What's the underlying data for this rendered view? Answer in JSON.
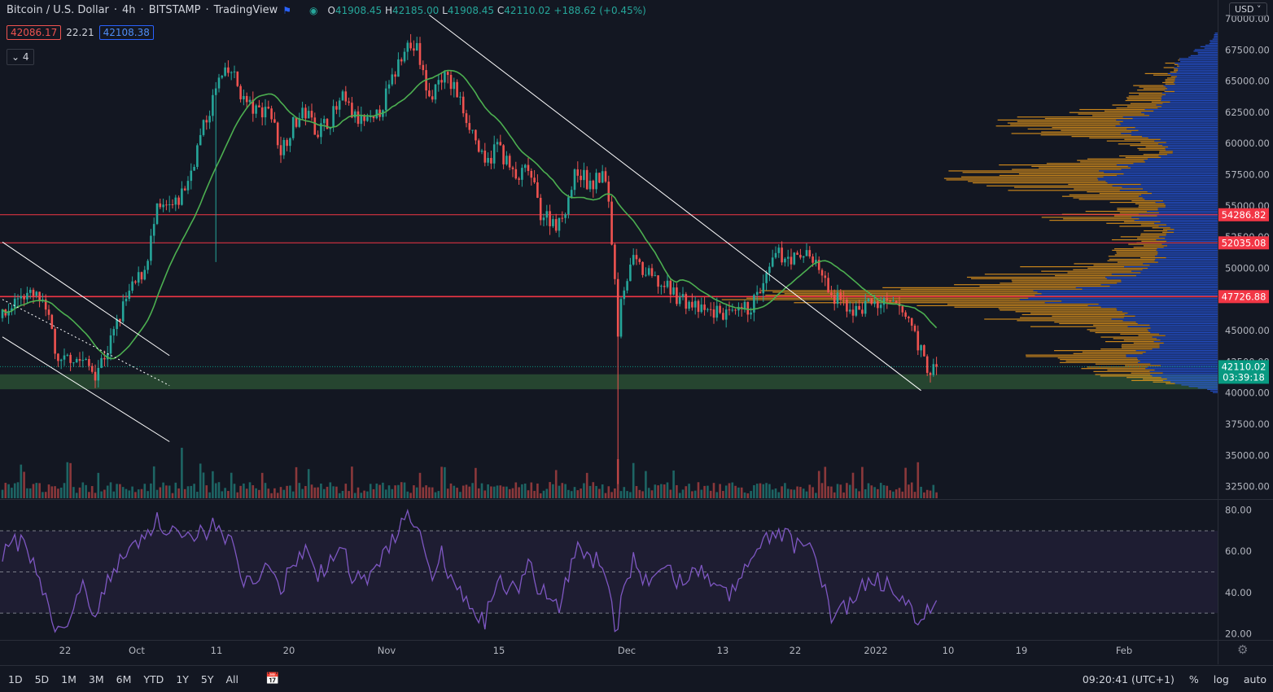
{
  "header": {
    "symbol": "Bitcoin / U.S. Dollar",
    "interval": "4h",
    "exchange": "BITSTAMP",
    "source": "TradingView",
    "ohlc": {
      "open_label": "O",
      "open": "41908.45",
      "high_label": "H",
      "high": "42185.00",
      "low_label": "L",
      "low": "41908.45",
      "close_label": "C",
      "close": "42110.02",
      "change": "+188.62 (+0.45%)"
    },
    "sell_price": "42086.17",
    "spread": "22.21",
    "buy_price": "42108.38",
    "indicator_count": "4",
    "currency": "USD"
  },
  "colors": {
    "background": "#131722",
    "up": "#26a69a",
    "down": "#ef5350",
    "ma": "#4caf50",
    "rsi": "#7e57c2",
    "hline": "#f23645",
    "support_zone": "#2a4d32",
    "trendline": "#ffffff",
    "vp_orange": "#f7a21b",
    "vp_blue": "#2962ff"
  },
  "price_axis": {
    "ticks": [
      "70000.00",
      "67500.00",
      "65000.00",
      "62500.00",
      "60000.00",
      "57500.00",
      "55000.00",
      "52500.00",
      "50000.00",
      "47500.00",
      "45000.00",
      "42500.00",
      "40000.00",
      "37500.00",
      "35000.00",
      "32500.00"
    ],
    "labels": [
      {
        "text": "54286.82",
        "color": "#f23645"
      },
      {
        "text": "52035.08",
        "color": "#f23645"
      },
      {
        "text": "47726.88",
        "color": "#f23645"
      },
      {
        "text": "42110.02",
        "color": "#089981"
      },
      {
        "text": "03:39:18",
        "color": "#089981"
      }
    ]
  },
  "rsi_axis": {
    "ticks": [
      "80.00",
      "60.00",
      "40.00",
      "20.00"
    ]
  },
  "time_axis": {
    "ticks": [
      "22",
      "Oct",
      "11",
      "20",
      "Nov",
      "15",
      "Dec",
      "13",
      "22",
      "2022",
      "10",
      "19",
      "Feb"
    ]
  },
  "bottom": {
    "ranges": [
      "1D",
      "5D",
      "1M",
      "3M",
      "6M",
      "YTD",
      "1Y",
      "5Y",
      "All"
    ],
    "clock": "09:20:41 (UTC+1)",
    "percent": "%",
    "log": "log",
    "auto": "auto"
  },
  "chart_data": {
    "type": "candlestick",
    "price_ylim": [
      31500,
      71500
    ],
    "rsi_ylim": [
      17,
      85
    ],
    "rsi_levels": [
      70,
      50,
      30
    ],
    "horizontal_levels": [
      54286.82,
      52035.08,
      47726.88
    ],
    "support_zone": [
      40300,
      41500
    ],
    "last_price": 42110.02,
    "anchors": [
      [
        0,
        46000
      ],
      [
        6,
        48000
      ],
      [
        12,
        47500
      ],
      [
        16,
        45000
      ],
      [
        18,
        42000
      ],
      [
        22,
        43000
      ],
      [
        26,
        42500
      ],
      [
        30,
        41700
      ],
      [
        34,
        43500
      ],
      [
        40,
        47500
      ],
      [
        46,
        50000
      ],
      [
        50,
        54500
      ],
      [
        56,
        55000
      ],
      [
        60,
        57000
      ],
      [
        64,
        60500
      ],
      [
        70,
        65000
      ],
      [
        74,
        65800
      ],
      [
        78,
        63500
      ],
      [
        82,
        62500
      ],
      [
        86,
        63000
      ],
      [
        90,
        59500
      ],
      [
        94,
        61500
      ],
      [
        98,
        62500
      ],
      [
        102,
        61000
      ],
      [
        106,
        62000
      ],
      [
        110,
        63500
      ],
      [
        114,
        62000
      ],
      [
        120,
        61500
      ],
      [
        126,
        65000
      ],
      [
        130,
        68000
      ],
      [
        134,
        67500
      ],
      [
        138,
        63500
      ],
      [
        142,
        65500
      ],
      [
        146,
        64500
      ],
      [
        152,
        61000
      ],
      [
        156,
        58000
      ],
      [
        160,
        60000
      ],
      [
        166,
        57000
      ],
      [
        170,
        58000
      ],
      [
        174,
        54500
      ],
      [
        180,
        53500
      ],
      [
        186,
        58000
      ],
      [
        190,
        56500
      ],
      [
        194,
        57500
      ],
      [
        196,
        55500
      ],
      [
        198,
        49000
      ],
      [
        199,
        45000
      ],
      [
        200,
        48000
      ],
      [
        204,
        50500
      ],
      [
        208,
        49500
      ],
      [
        214,
        48500
      ],
      [
        220,
        47500
      ],
      [
        226,
        46500
      ],
      [
        232,
        46500
      ],
      [
        236,
        46000
      ],
      [
        242,
        47000
      ],
      [
        246,
        48500
      ],
      [
        250,
        51000
      ],
      [
        254,
        51000
      ],
      [
        258,
        50500
      ],
      [
        260,
        51500
      ],
      [
        264,
        50000
      ],
      [
        268,
        47500
      ],
      [
        272,
        47200
      ],
      [
        276,
        46500
      ],
      [
        280,
        47200
      ],
      [
        286,
        47000
      ],
      [
        290,
        46800
      ],
      [
        294,
        45500
      ],
      [
        298,
        42500
      ],
      [
        300,
        41800
      ],
      [
        302,
        42110
      ]
    ],
    "rsi_anchors": [
      [
        0,
        60
      ],
      [
        6,
        65
      ],
      [
        12,
        50
      ],
      [
        16,
        25
      ],
      [
        18,
        22
      ],
      [
        22,
        30
      ],
      [
        26,
        45
      ],
      [
        30,
        30
      ],
      [
        34,
        45
      ],
      [
        40,
        60
      ],
      [
        46,
        68
      ],
      [
        50,
        75
      ],
      [
        56,
        70
      ],
      [
        60,
        65
      ],
      [
        64,
        70
      ],
      [
        70,
        72
      ],
      [
        74,
        65
      ],
      [
        78,
        45
      ],
      [
        82,
        42
      ],
      [
        86,
        55
      ],
      [
        90,
        40
      ],
      [
        94,
        55
      ],
      [
        98,
        60
      ],
      [
        102,
        50
      ],
      [
        106,
        55
      ],
      [
        110,
        62
      ],
      [
        114,
        45
      ],
      [
        120,
        50
      ],
      [
        126,
        65
      ],
      [
        130,
        78
      ],
      [
        134,
        72
      ],
      [
        138,
        48
      ],
      [
        142,
        58
      ],
      [
        146,
        45
      ],
      [
        152,
        30
      ],
      [
        156,
        25
      ],
      [
        160,
        48
      ],
      [
        166,
        40
      ],
      [
        170,
        55
      ],
      [
        174,
        40
      ],
      [
        180,
        35
      ],
      [
        186,
        60
      ],
      [
        190,
        55
      ],
      [
        194,
        55
      ],
      [
        196,
        45
      ],
      [
        198,
        25
      ],
      [
        199,
        20
      ],
      [
        200,
        35
      ],
      [
        204,
        55
      ],
      [
        208,
        45
      ],
      [
        214,
        50
      ],
      [
        220,
        45
      ],
      [
        226,
        50
      ],
      [
        232,
        40
      ],
      [
        236,
        40
      ],
      [
        242,
        55
      ],
      [
        246,
        65
      ],
      [
        250,
        70
      ],
      [
        254,
        68
      ],
      [
        258,
        60
      ],
      [
        260,
        65
      ],
      [
        264,
        50
      ],
      [
        268,
        30
      ],
      [
        272,
        32
      ],
      [
        276,
        40
      ],
      [
        280,
        45
      ],
      [
        286,
        45
      ],
      [
        290,
        40
      ],
      [
        294,
        30
      ],
      [
        298,
        28
      ],
      [
        300,
        33
      ],
      [
        302,
        37
      ]
    ],
    "trendlines": [
      {
        "from": [
          0,
          52100
        ],
        "to": [
          54,
          43000
        ],
        "style": "solid"
      },
      {
        "from": [
          0,
          44500
        ],
        "to": [
          54,
          36100
        ],
        "style": "solid"
      },
      {
        "from": [
          0,
          47500
        ],
        "to": [
          54,
          40600
        ],
        "style": "dotted"
      },
      {
        "from": [
          138,
          70300
        ],
        "to": [
          297,
          40200
        ],
        "style": "solid"
      }
    ]
  }
}
